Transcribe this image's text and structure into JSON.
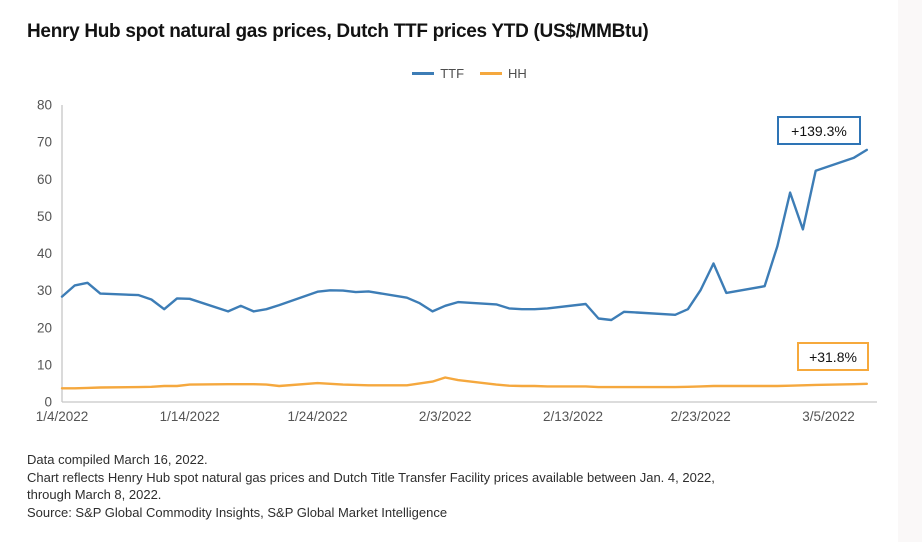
{
  "title": "Henry Hub spot natural gas prices, Dutch TTF prices YTD (US$/MMBtu)",
  "legend": {
    "items": [
      {
        "label": "TTF",
        "color": "#3d7db6"
      },
      {
        "label": "HH",
        "color": "#f5a83e"
      }
    ]
  },
  "annotations": {
    "ttf": {
      "label": "+139.3%",
      "color": "#2e74b5"
    },
    "hh": {
      "label": "+31.8%",
      "color": "#f6a93c"
    }
  },
  "footnotes": [
    "Data compiled March 16, 2022.",
    "Chart reflects Henry Hub spot natural gas prices and Dutch Title Transfer Facility prices available between Jan. 4, 2022,",
    "through March 8, 2022.",
    "Source: S&P Global Commodity Insights, S&P Global Market Intelligence"
  ],
  "chart_data": {
    "type": "line",
    "title": "Henry Hub spot natural gas prices, Dutch TTF prices YTD (US$/MMBtu)",
    "xlabel": "",
    "ylabel": "US$/MMBtu",
    "grid": false,
    "legend_position": "top-center",
    "ylim": [
      0,
      80
    ],
    "y_ticks": [
      0,
      10,
      20,
      30,
      40,
      50,
      60,
      70,
      80
    ],
    "x_ticks": [
      "1/4/2022",
      "1/14/2022",
      "1/24/2022",
      "2/3/2022",
      "2/13/2022",
      "2/23/2022",
      "3/5/2022"
    ],
    "xlim_days": [
      0,
      63.8
    ],
    "x": [
      "1/4/2022",
      "1/5/2022",
      "1/6/2022",
      "1/7/2022",
      "1/10/2022",
      "1/11/2022",
      "1/12/2022",
      "1/13/2022",
      "1/14/2022",
      "1/17/2022",
      "1/18/2022",
      "1/19/2022",
      "1/20/2022",
      "1/21/2022",
      "1/24/2022",
      "1/25/2022",
      "1/26/2022",
      "1/27/2022",
      "1/28/2022",
      "1/31/2022",
      "2/1/2022",
      "2/2/2022",
      "2/3/2022",
      "2/4/2022",
      "2/7/2022",
      "2/8/2022",
      "2/9/2022",
      "2/10/2022",
      "2/11/2022",
      "2/14/2022",
      "2/15/2022",
      "2/16/2022",
      "2/17/2022",
      "2/18/2022",
      "2/21/2022",
      "2/22/2022",
      "2/23/2022",
      "2/24/2022",
      "2/25/2022",
      "2/28/2022",
      "3/1/2022",
      "3/2/2022",
      "3/3/2022",
      "3/4/2022",
      "3/7/2022",
      "3/8/2022"
    ],
    "series": [
      {
        "name": "TTF",
        "color": "#3d7db6",
        "values": [
          28.4,
          31.4,
          32.1,
          29.2,
          28.8,
          27.6,
          25.0,
          27.9,
          27.8,
          24.4,
          25.9,
          24.4,
          25.0,
          26.1,
          29.7,
          30.1,
          30.0,
          29.6,
          29.8,
          28.1,
          26.6,
          24.4,
          25.9,
          26.9,
          26.3,
          25.2,
          25.0,
          25.0,
          25.2,
          26.4,
          22.5,
          22.1,
          24.3,
          24.1,
          23.5,
          25.0,
          30.2,
          37.3,
          29.4,
          31.2,
          42.0,
          56.4,
          46.5,
          62.3,
          65.8,
          67.9
        ],
        "ytd_change_label": "+139.3%"
      },
      {
        "name": "HH",
        "color": "#f5a83e",
        "values": [
          3.7,
          3.7,
          3.8,
          3.9,
          4.0,
          4.1,
          4.3,
          4.3,
          4.7,
          4.8,
          4.8,
          4.8,
          4.7,
          4.3,
          5.1,
          4.9,
          4.7,
          4.6,
          4.5,
          4.5,
          5.0,
          5.5,
          6.6,
          5.9,
          4.7,
          4.4,
          4.3,
          4.3,
          4.2,
          4.2,
          4.0,
          4.0,
          4.0,
          4.0,
          4.0,
          4.1,
          4.2,
          4.3,
          4.3,
          4.3,
          4.3,
          4.4,
          4.5,
          4.6,
          4.8,
          4.9
        ],
        "ytd_change_label": "+31.8%"
      }
    ]
  }
}
